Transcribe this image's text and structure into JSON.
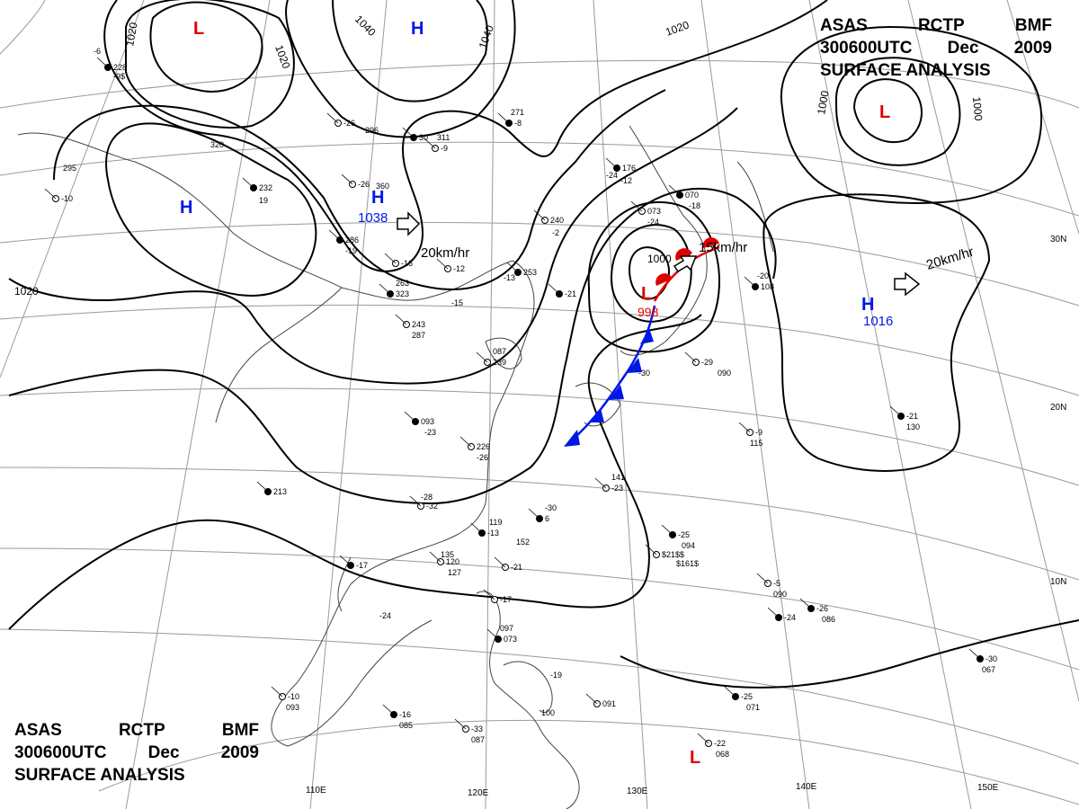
{
  "header": {
    "line1": [
      "ASAS",
      "RCTP",
      "BMF"
    ],
    "line2": [
      "300600UTC",
      "Dec",
      "2009"
    ],
    "line3": "SURFACE ANALYSIS"
  },
  "longitude_labels": [
    "110E",
    "120E",
    "130E",
    "140E",
    "150E"
  ],
  "latitude_labels": [
    "30N",
    "20N",
    "10N"
  ],
  "isobar_labels": [
    "1020",
    "1020",
    "1040",
    "1040",
    "1020",
    "1000",
    "1000",
    "1020",
    "1000"
  ],
  "pressure_systems": [
    {
      "type": "L",
      "value": ""
    },
    {
      "type": "H",
      "value": ""
    },
    {
      "type": "H",
      "value": ""
    },
    {
      "type": "H",
      "value": "1038"
    },
    {
      "type": "L",
      "value": ""
    },
    {
      "type": "L",
      "value": "998"
    },
    {
      "type": "H",
      "value": "1016"
    },
    {
      "type": "L",
      "value": ""
    }
  ],
  "motion_labels": [
    "20km/hr",
    "15km/hr",
    "20km/hr"
  ],
  "station_labels": [
    "228",
    "-6",
    "-26",
    "296",
    "30",
    "311",
    "-9",
    "271",
    "-8",
    "295",
    "-10",
    "320",
    "232",
    "19",
    "-26",
    "360",
    "286",
    "-19",
    "-16",
    "-24",
    "176",
    "-12",
    "073",
    "-24",
    "070",
    "-18",
    "240",
    "-2",
    "253",
    "-13",
    "-12",
    "263",
    "323",
    "-15",
    "243",
    "287",
    "-21",
    "087",
    "239",
    "-20",
    "108",
    "-30",
    "-29",
    "090",
    "093",
    "-23",
    "226",
    "-26",
    "213",
    "-28",
    "-32",
    "-30",
    "6",
    "141",
    "-23",
    "119",
    "-13",
    "152",
    "-21",
    "135",
    "-17",
    "-24",
    "120",
    "127",
    "-25",
    "094",
    "-9",
    "115",
    "-21",
    "130",
    "-5",
    "090",
    "-26",
    "086",
    "-17",
    "097",
    "073",
    "-19",
    "091",
    "100",
    "-25",
    "071",
    "-22",
    "068",
    "-30",
    "067",
    "-10",
    "093",
    "-16",
    "085",
    "-33",
    "087",
    "-24",
    "$161$",
    "$21$$",
    "-9$"
  ],
  "colors": {
    "low": "#e00000",
    "high": "#0018e6",
    "front_cold": "#0018e6",
    "front_warm": "#e00000",
    "isobar": "#000000",
    "grid": "#9a9a9a"
  }
}
